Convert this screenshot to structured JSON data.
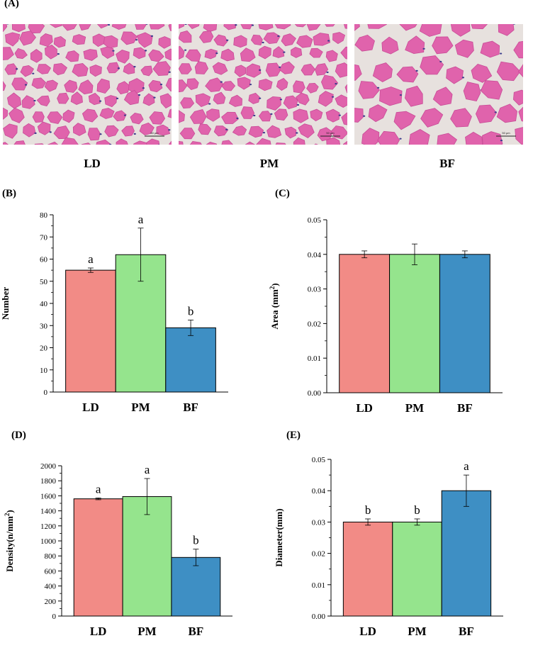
{
  "panel_labels": {
    "A": "(A)",
    "B": "(B)",
    "C": "(C)",
    "D": "(D)",
    "E": "(E)"
  },
  "micrograph": {
    "labels": [
      "LD",
      "PM",
      "BF"
    ],
    "scale_text": "50 μm",
    "colors": {
      "background": "#e7e1de",
      "fiber": "#e063ac",
      "fiber_dark": "#c94c97",
      "nucleus": "#3b3a8c"
    }
  },
  "colors": {
    "LD": "#f28b86",
    "PM": "#95e48d",
    "BF": "#3e8fc4"
  },
  "chart_data": [
    {
      "id": "B",
      "type": "bar",
      "title": "",
      "xlabel": "",
      "ylabel": "Number",
      "categories": [
        "LD",
        "PM",
        "BF"
      ],
      "values": [
        55,
        62,
        29
      ],
      "errors": [
        1,
        12,
        3.5
      ],
      "letters": [
        "a",
        "a",
        "b"
      ],
      "ylim": [
        0,
        80
      ],
      "ticks": [
        0,
        10,
        20,
        30,
        40,
        50,
        60,
        70,
        80
      ],
      "tick_labels": [
        "0",
        "10",
        "20",
        "30",
        "40",
        "50",
        "60",
        "70",
        "80"
      ]
    },
    {
      "id": "C",
      "type": "bar",
      "title": "",
      "xlabel": "",
      "ylabel": "Area (mm",
      "ylabel_sup": "2",
      "ylabel_end": ")",
      "categories": [
        "LD",
        "PM",
        "BF"
      ],
      "values": [
        0.04,
        0.04,
        0.04
      ],
      "errors": [
        0.001,
        0.003,
        0.001
      ],
      "letters": [
        "",
        "",
        ""
      ],
      "ylim": [
        0,
        0.05
      ],
      "ticks": [
        0,
        0.01,
        0.02,
        0.03,
        0.04,
        0.05
      ],
      "tick_labels": [
        "0.00",
        "0.01",
        "0.02",
        "0.03",
        "0.04",
        "0.05"
      ]
    },
    {
      "id": "D",
      "type": "bar",
      "title": "",
      "xlabel": "",
      "ylabel": "Density(n/mm",
      "ylabel_sup": "2",
      "ylabel_end": ")",
      "categories": [
        "LD",
        "PM",
        "BF"
      ],
      "values": [
        1560,
        1590,
        780
      ],
      "errors": [
        12,
        240,
        110
      ],
      "letters": [
        "a",
        "a",
        "b"
      ],
      "ylim": [
        0,
        2000
      ],
      "ticks": [
        0,
        200,
        400,
        600,
        800,
        1000,
        1200,
        1400,
        1600,
        1800,
        2000
      ],
      "tick_labels": [
        "0",
        "200",
        "400",
        "600",
        "800",
        "1000",
        "1200",
        "1400",
        "1600",
        "1800",
        "2000"
      ]
    },
    {
      "id": "E",
      "type": "bar",
      "title": "",
      "xlabel": "",
      "ylabel": "Diameter(mm)",
      "categories": [
        "LD",
        "PM",
        "BF"
      ],
      "values": [
        0.03,
        0.03,
        0.04
      ],
      "errors": [
        0.001,
        0.001,
        0.005
      ],
      "letters": [
        "b",
        "b",
        "a"
      ],
      "ylim": [
        0,
        0.05
      ],
      "ticks": [
        0,
        0.01,
        0.02,
        0.03,
        0.04,
        0.05
      ],
      "tick_labels": [
        "0.00",
        "0.01",
        "0.02",
        "0.03",
        "0.04",
        "0.05"
      ]
    }
  ]
}
